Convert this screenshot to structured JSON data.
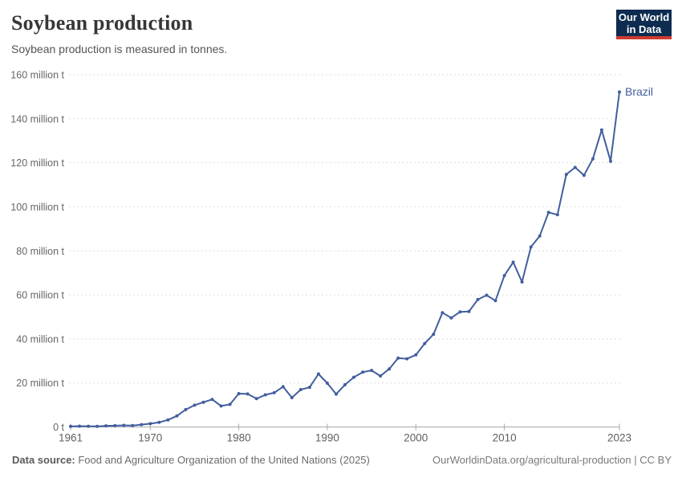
{
  "header": {
    "title": "Soybean production",
    "subtitle": "Soybean production is measured in tonnes."
  },
  "logo": {
    "line1": "Our World",
    "line2": "in Data",
    "bg_color": "#0d2c50",
    "accent_color": "#cf3b31"
  },
  "chart_data": {
    "type": "line",
    "title": "Soybean production",
    "unit": "tonnes",
    "xlim": [
      1961,
      2023
    ],
    "ylim": [
      0,
      160000000
    ],
    "grid": "horizontal dashed",
    "legend_position": "end-of-line label",
    "x_ticks": [
      1961,
      1970,
      1980,
      1990,
      2000,
      2010,
      2023
    ],
    "y_ticks_million": [
      0,
      20,
      40,
      60,
      80,
      100,
      120,
      140,
      160
    ],
    "y_tick_suffix": " million t",
    "y_tick_zero_label": "0 t",
    "end_label": "Brazil",
    "series": [
      {
        "name": "Brazil",
        "color": "#425e9e",
        "x": [
          1961,
          1962,
          1963,
          1964,
          1965,
          1966,
          1967,
          1968,
          1969,
          1970,
          1971,
          1972,
          1973,
          1974,
          1975,
          1976,
          1977,
          1978,
          1979,
          1980,
          1981,
          1982,
          1983,
          1984,
          1985,
          1986,
          1987,
          1988,
          1989,
          1990,
          1991,
          1992,
          1993,
          1994,
          1995,
          1996,
          1997,
          1998,
          1999,
          2000,
          2001,
          2002,
          2003,
          2004,
          2005,
          2006,
          2007,
          2008,
          2009,
          2010,
          2011,
          2012,
          2013,
          2014,
          2015,
          2016,
          2017,
          2018,
          2019,
          2020,
          2021,
          2022,
          2023
        ],
        "values_million_t": [
          0.27,
          0.35,
          0.32,
          0.3,
          0.52,
          0.59,
          0.72,
          0.65,
          1.06,
          1.51,
          2.08,
          3.22,
          5.01,
          7.88,
          9.89,
          11.23,
          12.51,
          9.54,
          10.24,
          15.16,
          15.01,
          12.84,
          14.58,
          15.54,
          18.28,
          13.33,
          16.98,
          18.01,
          24.07,
          19.9,
          14.94,
          19.21,
          22.59,
          24.93,
          25.68,
          23.17,
          26.39,
          31.31,
          30.99,
          32.73,
          37.91,
          42.11,
          51.92,
          49.55,
          52.3,
          52.46,
          57.86,
          59.83,
          57.35,
          68.76,
          74.82,
          65.85,
          81.72,
          86.76,
          97.46,
          96.39,
          114.73,
          117.91,
          114.32,
          121.8,
          134.93,
          120.7,
          152.14
        ]
      }
    ]
  },
  "footer": {
    "source_label": "Data source:",
    "source_text": " Food and Agriculture Organization of the United Nations (2025)",
    "link_text": "OurWorldinData.org/agricultural-production",
    "separator": " | ",
    "license_text": "CC BY"
  }
}
